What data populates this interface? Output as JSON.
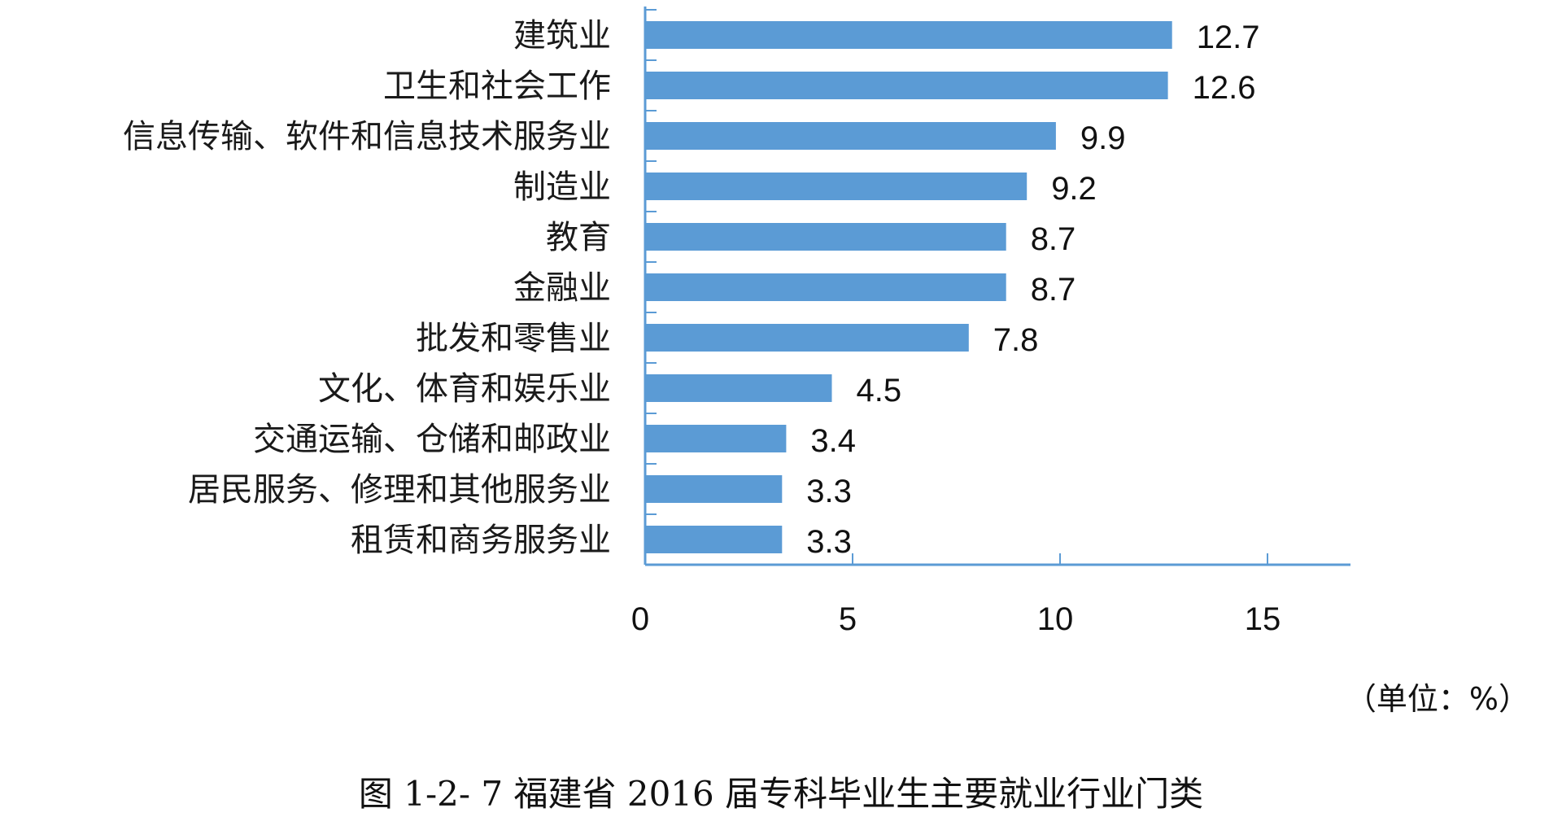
{
  "chart_data": {
    "type": "bar",
    "orientation": "horizontal",
    "categories": [
      "建筑业",
      "卫生和社会工作",
      "信息传输、软件和信息技术服务业",
      "制造业",
      "教育",
      "金融业",
      "批发和零售业",
      "文化、体育和娱乐业",
      "交通运输、仓储和邮政业",
      "居民服务、修理和其他服务业",
      "租赁和商务服务业"
    ],
    "values": [
      12.7,
      12.6,
      9.9,
      9.2,
      8.7,
      8.7,
      7.8,
      4.5,
      3.4,
      3.3,
      3.3
    ],
    "value_labels": [
      "12.7",
      "12.6",
      "9.9",
      "9.2",
      "8.7",
      "8.7",
      "7.8",
      "4.5",
      "3.4",
      "3.3",
      "3.3"
    ],
    "xlim": [
      0,
      17
    ],
    "xticks": [
      0,
      5,
      10,
      15
    ],
    "xtick_labels": [
      "0",
      "5",
      "10",
      "15"
    ],
    "grid": false,
    "bar_color": "#5B9BD5",
    "axis_color": "#5B9BD5",
    "unit_note": "（单位：%）",
    "caption": "图 1-2- 7 福建省 2016 届专科毕业生主要就业行业门类"
  }
}
